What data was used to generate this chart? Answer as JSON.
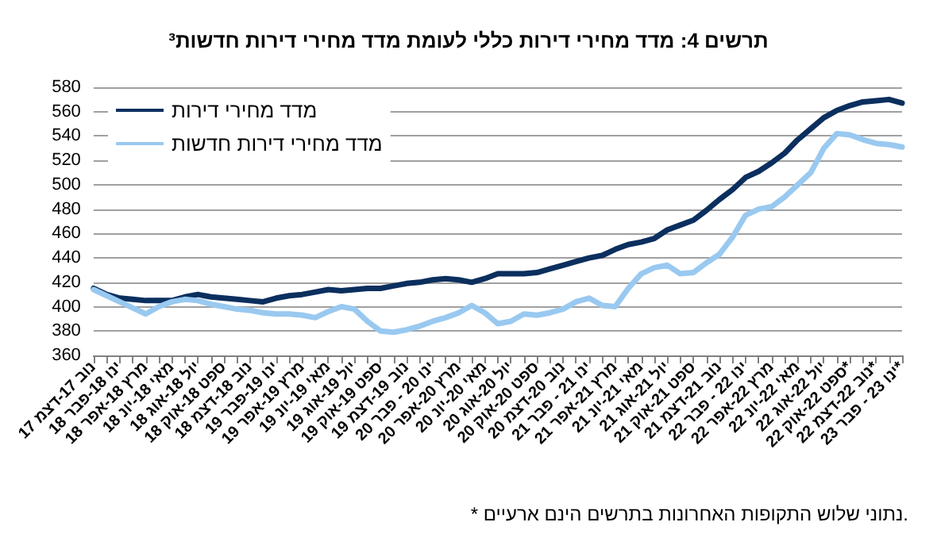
{
  "chart_data": {
    "type": "line",
    "title": "תרשים 4: מדד מחירי דירות כללי לעומת מדד מחירי דירות חדשות³",
    "annotations": [
      "* נתוני שלוש התקופות האחרונות בתרשים הינם ארעיים."
    ],
    "categories": [
      "נוב 17-דצמ 17",
      null,
      "ינו 18-פבר 18",
      null,
      "מרץ 18-אפר 18",
      null,
      "מאי 18-יונ 18",
      null,
      "יול 18-אוג 18",
      null,
      "ספט 18-אוק 18",
      null,
      "נוב 18-דצמ 18",
      null,
      "ינו 19-פבר 19",
      null,
      "מרץ 19-אפר 19",
      null,
      "מאי 19-יונ 19",
      null,
      "יול 19-אוג 19",
      null,
      "ספט 19-אוק 19",
      null,
      "נוב 19-דצמ 19",
      null,
      "ינו 20 - פבר 20",
      null,
      "מרץ 20-אפר 20",
      null,
      "מאי 20-יונ 20",
      null,
      "יול 20-אוג 20",
      null,
      "ספט 20-אוק 20",
      null,
      "נוב 20-דצמ 20",
      null,
      "ינו 21 - פבר 21",
      null,
      "מרץ 21-אפר 21",
      null,
      "מאי 21-יונ 21",
      null,
      "יול 21-אוג 21",
      null,
      "ספט 21-אוק 21",
      null,
      "נוב 21-דצמ 21",
      null,
      "ינו 22 - פבר 22",
      null,
      "מרץ 22-אפר 22",
      null,
      "מאי 22-יונ 22",
      null,
      "יול 22-אוג 22",
      null,
      "ספט 22-אוק 22*",
      null,
      "נוב 22-דצמ 22*",
      null,
      "ינו 23 - פבר 23*"
    ],
    "series": [
      {
        "name": "מדד מחירי דירות",
        "color": "#0b2f5e",
        "values": [
          415,
          410,
          407,
          406,
          405,
          405,
          405,
          408,
          410,
          408,
          407,
          406,
          405,
          404,
          407,
          409,
          410,
          412,
          414,
          413,
          414,
          415,
          415,
          417,
          419,
          420,
          422,
          423,
          422,
          420,
          423,
          427,
          427,
          427,
          428,
          431,
          434,
          437,
          440,
          442,
          447,
          451,
          453,
          456,
          463,
          467,
          471,
          479,
          488,
          496,
          506,
          511,
          518,
          526,
          537,
          546,
          555,
          561,
          565,
          568,
          569,
          570,
          567
        ]
      },
      {
        "name": "מדד מחירי דירות חדשות",
        "color": "#99c9f0",
        "values": [
          414,
          409,
          404,
          399,
          394,
          400,
          404,
          406,
          405,
          402,
          400,
          398,
          397,
          395,
          394,
          394,
          393,
          391,
          396,
          400,
          398,
          388,
          380,
          379,
          381,
          384,
          388,
          391,
          395,
          401,
          395,
          386,
          388,
          394,
          393,
          395,
          398,
          404,
          407,
          401,
          400,
          415,
          427,
          432,
          434,
          427,
          428,
          436,
          443,
          457,
          475,
          480,
          482,
          490,
          500,
          510,
          530,
          542,
          541,
          537,
          534,
          533,
          531
        ]
      }
    ],
    "ylim": [
      360,
      580
    ],
    "yticks": [
      360,
      380,
      400,
      420,
      440,
      460,
      480,
      500,
      520,
      540,
      560,
      580
    ],
    "grid": "y",
    "legend": "top left",
    "marker": "none",
    "line_style": "solid"
  }
}
